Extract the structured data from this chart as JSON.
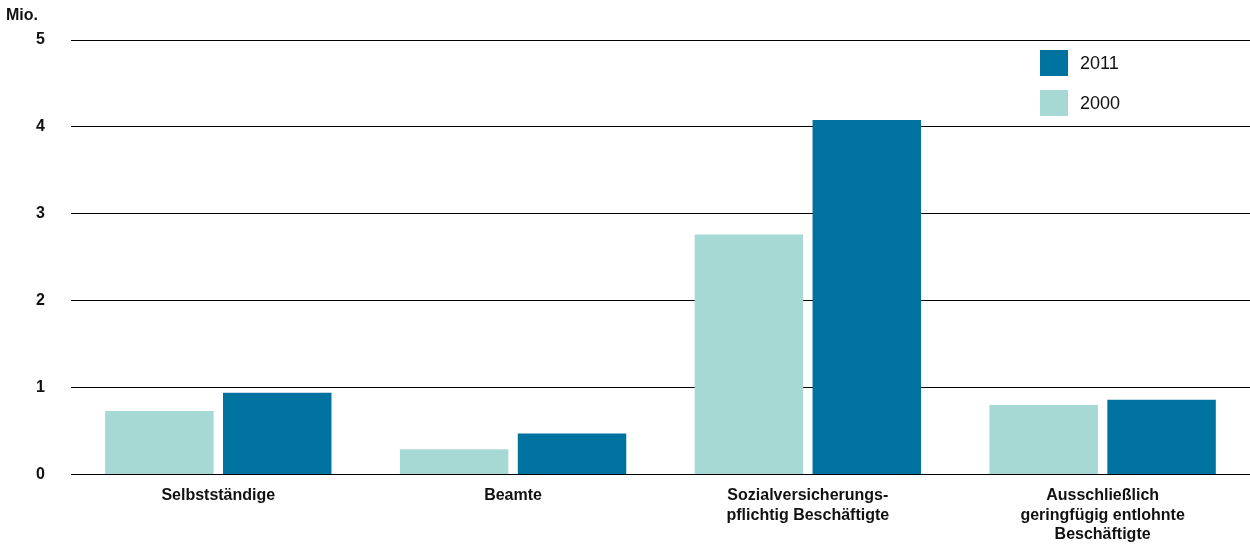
{
  "chart_data": {
    "type": "bar",
    "ylabel": "Mio.",
    "categories": [
      "Selbstständige",
      "Beamte",
      "Sozialversicherungs-pflichtig Beschäftigte",
      "Ausschließlich geringfügig entlohnte Beschäftigte"
    ],
    "series": [
      {
        "name": "2000",
        "color": "#a6d8d4",
        "values": [
          0.73,
          0.29,
          2.76,
          0.8
        ]
      },
      {
        "name": "2011",
        "color": "#00729f",
        "values": [
          0.94,
          0.47,
          4.08,
          0.86
        ]
      }
    ],
    "ylim": [
      0,
      5
    ],
    "yticks": [
      0,
      1,
      2,
      3,
      4,
      5
    ],
    "grid": "y",
    "legend": "top right"
  }
}
